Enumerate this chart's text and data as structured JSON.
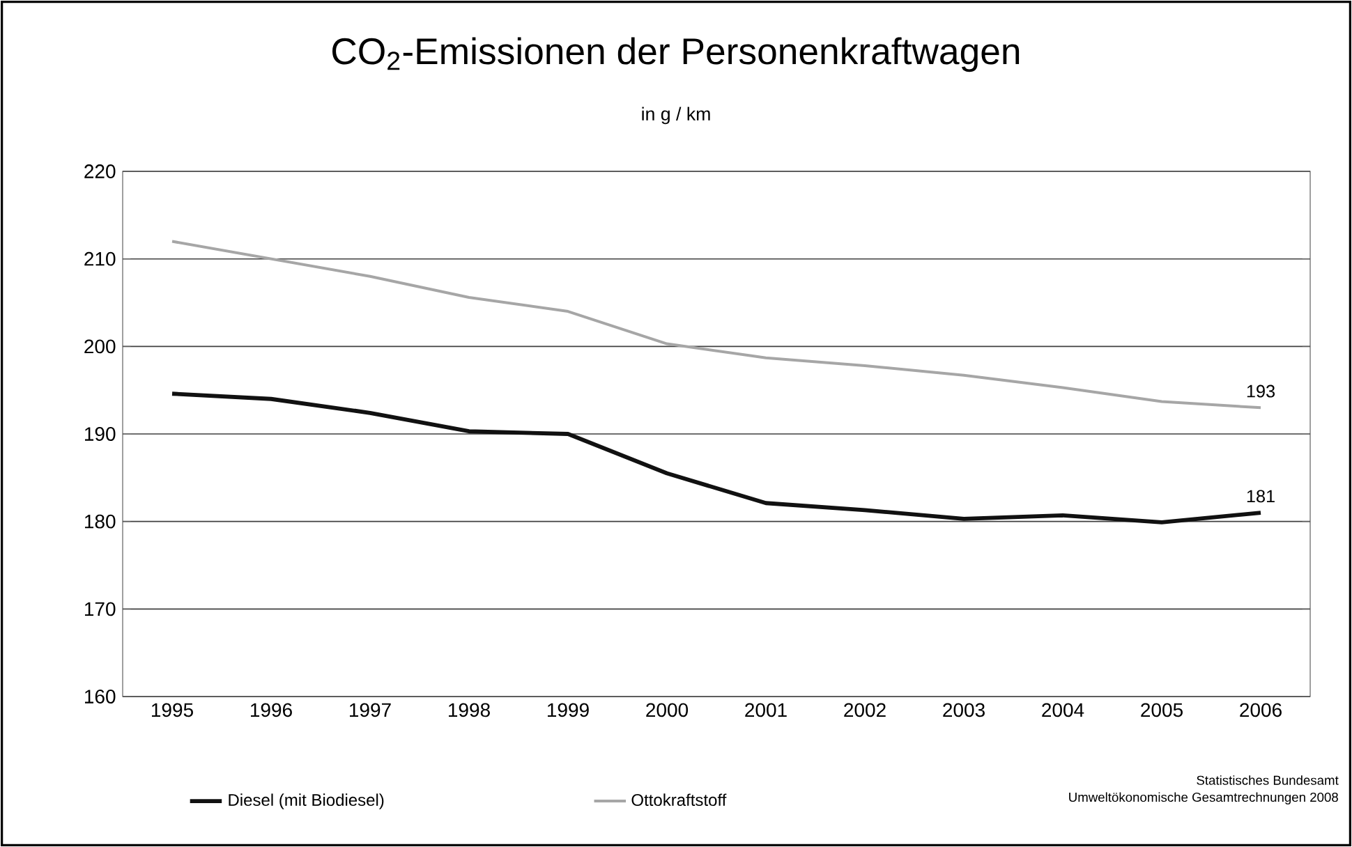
{
  "chart_data": {
    "type": "line",
    "title": "CO$_{2}$-Emissionen der Personenkraftwagen",
    "subtitle": "in g / km",
    "categories": [
      "1995",
      "1996",
      "1997",
      "1998",
      "1999",
      "2000",
      "2001",
      "2002",
      "2003",
      "2004",
      "2005",
      "2006"
    ],
    "series": [
      {
        "name": "Diesel (mit Biodiesel)",
        "color": "#111111",
        "values": [
          194.6,
          194,
          192.4,
          190.3,
          190,
          185.5,
          182.1,
          181.3,
          180.3,
          180.7,
          179.9,
          181
        ],
        "value_labels": [
          null,
          null,
          null,
          null,
          null,
          null,
          null,
          null,
          null,
          null,
          null,
          "181"
        ]
      },
      {
        "name": "Ottokraftstoff",
        "color": "#a6a6a6",
        "values": [
          212,
          210,
          208,
          205.6,
          204,
          200.3,
          198.7,
          197.8,
          196.7,
          195.3,
          193.7,
          193
        ],
        "value_labels": [
          null,
          null,
          null,
          null,
          null,
          null,
          null,
          null,
          null,
          null,
          null,
          "193"
        ]
      }
    ],
    "ylim": [
      160,
      220
    ],
    "yticks": [
      160,
      170,
      180,
      190,
      200,
      210,
      220
    ],
    "grid": "y",
    "legend": "bottom",
    "marker": "none",
    "line_style": "solid",
    "annotations": [
      "Statistisches Bundesamt",
      "Umweltökonomische Gesamtrechnungen 2008"
    ]
  }
}
